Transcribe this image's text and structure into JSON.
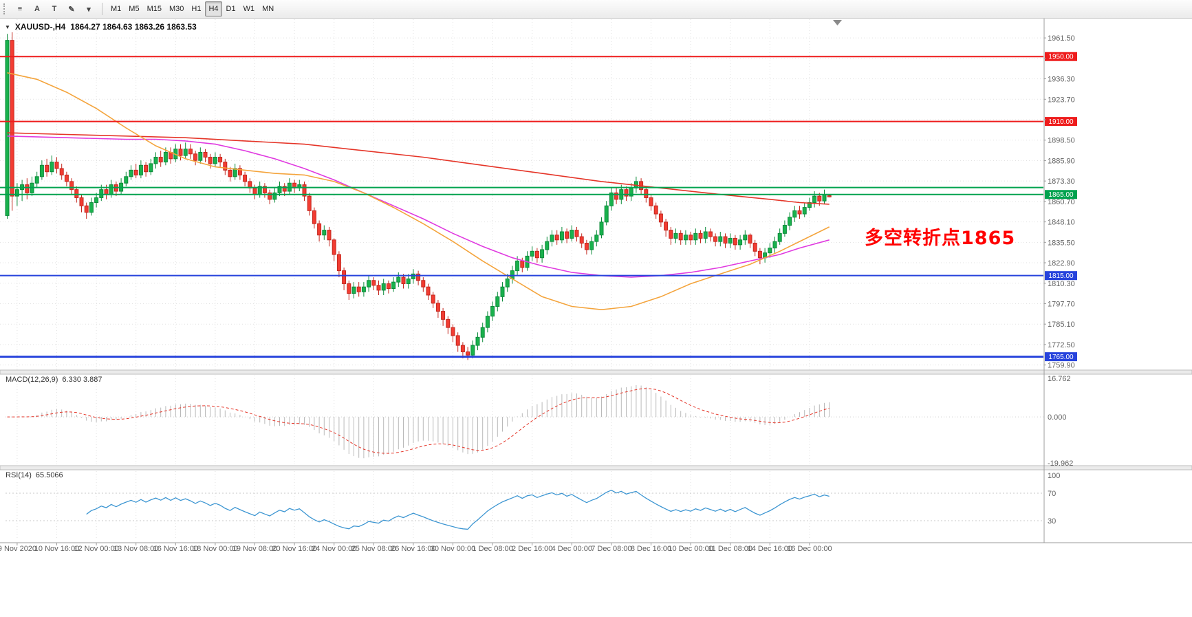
{
  "toolbar": {
    "icons": [
      {
        "name": "chart-list",
        "glyph": "≡"
      },
      {
        "name": "text-label",
        "glyph": "A"
      },
      {
        "name": "text-tool",
        "glyph": "T"
      },
      {
        "name": "draw-tools",
        "glyph": "✎"
      },
      {
        "name": "draw-tools-caret",
        "glyph": "▾"
      }
    ],
    "timeframes": [
      "M1",
      "M5",
      "M15",
      "M30",
      "H1",
      "H4",
      "D1",
      "W1",
      "MN"
    ],
    "active_timeframe": "H4"
  },
  "chart": {
    "title_symbol": "XAUUSD-,H4",
    "title_ohlc": "1864.27 1864.63 1863.26 1863.53",
    "one_click_glyph": "▼",
    "annotation": {
      "text": "多空转折点1865",
      "color": "#ff0000"
    }
  },
  "chart_data": {
    "type": "candlestick",
    "symbol": "XAUUSD-",
    "timeframe": "H4",
    "ohlc_current": {
      "open": 1864.27,
      "high": 1864.63,
      "low": 1863.26,
      "close": 1863.53
    },
    "y_axis": {
      "view_top": 1973.0,
      "view_bottom": 1757.2,
      "tick_start": 1759.9,
      "tick_step": 12.6,
      "tick_count": 17,
      "decimals": 2
    },
    "time_labels": [
      {
        "i": 2,
        "t": "9 Nov 2020"
      },
      {
        "i": 10,
        "t": "10 Nov 16:00"
      },
      {
        "i": 18,
        "t": "12 Nov 00:00"
      },
      {
        "i": 26,
        "t": "13 Nov 08:00"
      },
      {
        "i": 34,
        "t": "16 Nov 16:00"
      },
      {
        "i": 42,
        "t": "18 Nov 00:00"
      },
      {
        "i": 50,
        "t": "19 Nov 08:00"
      },
      {
        "i": 58,
        "t": "20 Nov 16:00"
      },
      {
        "i": 66,
        "t": "24 Nov 00:00"
      },
      {
        "i": 74,
        "t": "25 Nov 08:00"
      },
      {
        "i": 82,
        "t": "26 Nov 16:00"
      },
      {
        "i": 90,
        "t": "30 Nov 00:00"
      },
      {
        "i": 98,
        "t": "1 Dec 08:00"
      },
      {
        "i": 106,
        "t": "2 Dec 16:00"
      },
      {
        "i": 114,
        "t": "4 Dec 00:00"
      },
      {
        "i": 122,
        "t": "7 Dec 08:00"
      },
      {
        "i": 130,
        "t": "8 Dec 16:00"
      },
      {
        "i": 138,
        "t": "10 Dec 00:00"
      },
      {
        "i": 146,
        "t": "11 Dec 08:00"
      },
      {
        "i": 154,
        "t": "14 Dec 16:00"
      },
      {
        "i": 162,
        "t": "16 Dec 00:00"
      }
    ],
    "hlines": [
      {
        "price": 1950.0,
        "label": "1950.00",
        "color": "#ee1c1c",
        "width": 2
      },
      {
        "price": 1910.0,
        "label": "1910.00",
        "color": "#ee1c1c",
        "width": 2
      },
      {
        "price": 1869.3,
        "label": "",
        "color": "#00a24e",
        "width": 2
      },
      {
        "price": 1865.0,
        "label": "1865.00",
        "color": "#00a24e",
        "width": 2
      },
      {
        "price": 1815.0,
        "label": "1815.00",
        "color": "#2743dc",
        "width": 2
      },
      {
        "price": 1765.0,
        "label": "1765.00",
        "color": "#2743dc",
        "width": 3
      }
    ],
    "candles": [
      [
        1852,
        1964,
        1850,
        1960
      ],
      [
        1960,
        1965,
        1855,
        1864
      ],
      [
        1864,
        1872,
        1858,
        1868
      ],
      [
        1868,
        1874,
        1861,
        1871
      ],
      [
        1871,
        1875,
        1862,
        1866
      ],
      [
        1866,
        1876,
        1864,
        1872
      ],
      [
        1872,
        1879,
        1869,
        1876
      ],
      [
        1876,
        1886,
        1874,
        1883
      ],
      [
        1883,
        1887,
        1876,
        1879
      ],
      [
        1879,
        1889,
        1877,
        1885
      ],
      [
        1885,
        1888,
        1878,
        1881
      ],
      [
        1881,
        1884,
        1874,
        1877
      ],
      [
        1877,
        1879,
        1870,
        1873
      ],
      [
        1873,
        1875,
        1865,
        1868
      ],
      [
        1868,
        1870,
        1860,
        1863
      ],
      [
        1863,
        1865,
        1854,
        1858
      ],
      [
        1858,
        1860,
        1850,
        1854
      ],
      [
        1854,
        1863,
        1852,
        1860
      ],
      [
        1860,
        1866,
        1857,
        1863
      ],
      [
        1863,
        1871,
        1861,
        1868
      ],
      [
        1868,
        1871,
        1862,
        1865
      ],
      [
        1865,
        1874,
        1863,
        1871
      ],
      [
        1871,
        1873,
        1864,
        1867
      ],
      [
        1867,
        1875,
        1865,
        1872
      ],
      [
        1872,
        1879,
        1870,
        1876
      ],
      [
        1876,
        1883,
        1874,
        1880
      ],
      [
        1880,
        1884,
        1875,
        1877
      ],
      [
        1877,
        1886,
        1875,
        1883
      ],
      [
        1883,
        1885,
        1876,
        1879
      ],
      [
        1879,
        1887,
        1877,
        1884
      ],
      [
        1884,
        1891,
        1881,
        1888
      ],
      [
        1888,
        1892,
        1882,
        1885
      ],
      [
        1885,
        1894,
        1883,
        1891
      ],
      [
        1891,
        1894,
        1884,
        1887
      ],
      [
        1887,
        1896,
        1885,
        1893
      ],
      [
        1893,
        1896,
        1886,
        1889
      ],
      [
        1889,
        1897,
        1887,
        1893
      ],
      [
        1893,
        1896,
        1887,
        1890
      ],
      [
        1890,
        1892,
        1883,
        1886
      ],
      [
        1886,
        1894,
        1884,
        1891
      ],
      [
        1891,
        1893,
        1885,
        1888
      ],
      [
        1888,
        1890,
        1881,
        1884
      ],
      [
        1884,
        1891,
        1882,
        1888
      ],
      [
        1888,
        1890,
        1882,
        1885
      ],
      [
        1885,
        1887,
        1877,
        1880
      ],
      [
        1880,
        1882,
        1873,
        1876
      ],
      [
        1876,
        1884,
        1874,
        1881
      ],
      [
        1881,
        1883,
        1874,
        1877
      ],
      [
        1877,
        1879,
        1870,
        1873
      ],
      [
        1873,
        1875,
        1866,
        1869
      ],
      [
        1869,
        1871,
        1862,
        1865
      ],
      [
        1865,
        1873,
        1863,
        1870
      ],
      [
        1870,
        1872,
        1863,
        1866
      ],
      [
        1866,
        1868,
        1859,
        1862
      ],
      [
        1862,
        1869,
        1860,
        1866
      ],
      [
        1866,
        1873,
        1864,
        1870
      ],
      [
        1870,
        1872,
        1864,
        1867
      ],
      [
        1867,
        1875,
        1865,
        1872
      ],
      [
        1872,
        1874,
        1866,
        1869
      ],
      [
        1869,
        1874,
        1867,
        1871
      ],
      [
        1871,
        1873,
        1861,
        1864
      ],
      [
        1864,
        1866,
        1852,
        1855
      ],
      [
        1855,
        1857,
        1844,
        1847
      ],
      [
        1847,
        1849,
        1836,
        1840
      ],
      [
        1840,
        1846,
        1837,
        1843
      ],
      [
        1843,
        1845,
        1833,
        1837
      ],
      [
        1837,
        1838,
        1824,
        1828
      ],
      [
        1828,
        1830,
        1814,
        1818
      ],
      [
        1818,
        1820,
        1806,
        1810
      ],
      [
        1810,
        1812,
        1800,
        1804
      ],
      [
        1804,
        1811,
        1801,
        1808
      ],
      [
        1808,
        1811,
        1802,
        1805
      ],
      [
        1805,
        1811,
        1802,
        1808
      ],
      [
        1808,
        1815,
        1805,
        1812
      ],
      [
        1812,
        1814,
        1806,
        1809
      ],
      [
        1809,
        1812,
        1803,
        1806
      ],
      [
        1806,
        1813,
        1803,
        1810
      ],
      [
        1810,
        1812,
        1804,
        1807
      ],
      [
        1807,
        1814,
        1805,
        1811
      ],
      [
        1811,
        1817,
        1808,
        1814
      ],
      [
        1814,
        1816,
        1807,
        1810
      ],
      [
        1810,
        1816,
        1807,
        1813
      ],
      [
        1813,
        1819,
        1810,
        1816
      ],
      [
        1816,
        1818,
        1809,
        1812
      ],
      [
        1812,
        1814,
        1805,
        1808
      ],
      [
        1808,
        1810,
        1800,
        1803
      ],
      [
        1803,
        1805,
        1795,
        1798
      ],
      [
        1798,
        1800,
        1789,
        1793
      ],
      [
        1793,
        1795,
        1784,
        1788
      ],
      [
        1788,
        1790,
        1779,
        1783
      ],
      [
        1783,
        1785,
        1774,
        1778
      ],
      [
        1778,
        1780,
        1768,
        1772
      ],
      [
        1772,
        1774,
        1764,
        1768
      ],
      [
        1768,
        1771,
        1763,
        1766
      ],
      [
        1766,
        1775,
        1764,
        1772
      ],
      [
        1772,
        1780,
        1769,
        1777
      ],
      [
        1777,
        1786,
        1774,
        1783
      ],
      [
        1783,
        1793,
        1780,
        1790
      ],
      [
        1790,
        1799,
        1787,
        1796
      ],
      [
        1796,
        1805,
        1793,
        1802
      ],
      [
        1802,
        1811,
        1799,
        1808
      ],
      [
        1808,
        1816,
        1805,
        1813
      ],
      [
        1813,
        1821,
        1810,
        1818
      ],
      [
        1818,
        1827,
        1815,
        1824
      ],
      [
        1824,
        1826,
        1817,
        1820
      ],
      [
        1820,
        1830,
        1818,
        1827
      ],
      [
        1827,
        1833,
        1824,
        1830
      ],
      [
        1830,
        1832,
        1823,
        1826
      ],
      [
        1826,
        1834,
        1823,
        1831
      ],
      [
        1831,
        1839,
        1828,
        1836
      ],
      [
        1836,
        1843,
        1833,
        1840
      ],
      [
        1840,
        1843,
        1834,
        1837
      ],
      [
        1837,
        1845,
        1835,
        1842
      ],
      [
        1842,
        1844,
        1835,
        1838
      ],
      [
        1838,
        1846,
        1836,
        1843
      ],
      [
        1843,
        1845,
        1836,
        1839
      ],
      [
        1839,
        1841,
        1832,
        1835
      ],
      [
        1835,
        1837,
        1828,
        1831
      ],
      [
        1831,
        1839,
        1828,
        1836
      ],
      [
        1836,
        1843,
        1833,
        1840
      ],
      [
        1840,
        1851,
        1838,
        1848
      ],
      [
        1848,
        1861,
        1846,
        1858
      ],
      [
        1858,
        1869,
        1855,
        1866
      ],
      [
        1866,
        1869,
        1859,
        1862
      ],
      [
        1862,
        1871,
        1859,
        1868
      ],
      [
        1868,
        1870,
        1861,
        1864
      ],
      [
        1864,
        1872,
        1861,
        1869
      ],
      [
        1869,
        1876,
        1866,
        1873
      ],
      [
        1873,
        1875,
        1865,
        1868
      ],
      [
        1868,
        1870,
        1860,
        1863
      ],
      [
        1863,
        1865,
        1855,
        1858
      ],
      [
        1858,
        1860,
        1850,
        1853
      ],
      [
        1853,
        1855,
        1845,
        1848
      ],
      [
        1848,
        1850,
        1839,
        1843
      ],
      [
        1843,
        1845,
        1834,
        1838
      ],
      [
        1838,
        1844,
        1835,
        1841
      ],
      [
        1841,
        1843,
        1834,
        1837
      ],
      [
        1837,
        1843,
        1834,
        1840
      ],
      [
        1840,
        1842,
        1834,
        1837
      ],
      [
        1837,
        1844,
        1834,
        1841
      ],
      [
        1841,
        1843,
        1835,
        1838
      ],
      [
        1838,
        1845,
        1835,
        1842
      ],
      [
        1842,
        1844,
        1836,
        1839
      ],
      [
        1839,
        1841,
        1833,
        1836
      ],
      [
        1836,
        1842,
        1833,
        1839
      ],
      [
        1839,
        1841,
        1832,
        1835
      ],
      [
        1835,
        1841,
        1832,
        1838
      ],
      [
        1838,
        1840,
        1831,
        1834
      ],
      [
        1834,
        1840,
        1831,
        1837
      ],
      [
        1837,
        1843,
        1834,
        1840
      ],
      [
        1840,
        1841,
        1832,
        1835
      ],
      [
        1835,
        1837,
        1827,
        1830
      ],
      [
        1830,
        1832,
        1822,
        1826
      ],
      [
        1826,
        1832,
        1823,
        1829
      ],
      [
        1829,
        1835,
        1826,
        1832
      ],
      [
        1832,
        1839,
        1829,
        1836
      ],
      [
        1836,
        1844,
        1834,
        1841
      ],
      [
        1841,
        1849,
        1839,
        1846
      ],
      [
        1846,
        1854,
        1843,
        1851
      ],
      [
        1851,
        1858,
        1848,
        1855
      ],
      [
        1855,
        1858,
        1850,
        1853
      ],
      [
        1853,
        1860,
        1851,
        1857
      ],
      [
        1857,
        1863,
        1855,
        1860
      ],
      [
        1860,
        1867,
        1857,
        1864
      ],
      [
        1864,
        1866,
        1858,
        1861
      ],
      [
        1861,
        1868,
        1859,
        1865
      ],
      [
        1864.27,
        1864.63,
        1863.26,
        1863.53
      ]
    ],
    "ma_fast": [
      [
        0,
        1940
      ],
      [
        6,
        1936
      ],
      [
        12,
        1928
      ],
      [
        18,
        1918
      ],
      [
        24,
        1906
      ],
      [
        30,
        1895
      ],
      [
        36,
        1887
      ],
      [
        42,
        1882
      ],
      [
        48,
        1880
      ],
      [
        54,
        1878
      ],
      [
        60,
        1877
      ],
      [
        66,
        1873
      ],
      [
        72,
        1866
      ],
      [
        78,
        1857
      ],
      [
        84,
        1847
      ],
      [
        90,
        1836
      ],
      [
        96,
        1824
      ],
      [
        102,
        1813
      ],
      [
        108,
        1802
      ],
      [
        114,
        1796
      ],
      [
        120,
        1794
      ],
      [
        126,
        1796
      ],
      [
        132,
        1802
      ],
      [
        138,
        1810
      ],
      [
        144,
        1816
      ],
      [
        150,
        1822
      ],
      [
        156,
        1830
      ],
      [
        160,
        1836
      ],
      [
        166,
        1845
      ]
    ],
    "ma_mid": [
      [
        0,
        1901
      ],
      [
        12,
        1900
      ],
      [
        24,
        1899
      ],
      [
        30,
        1899
      ],
      [
        36,
        1898
      ],
      [
        42,
        1896
      ],
      [
        48,
        1892
      ],
      [
        54,
        1887
      ],
      [
        60,
        1881
      ],
      [
        66,
        1874
      ],
      [
        72,
        1866
      ],
      [
        78,
        1858
      ],
      [
        84,
        1850
      ],
      [
        90,
        1841
      ],
      [
        96,
        1833
      ],
      [
        102,
        1826
      ],
      [
        108,
        1821
      ],
      [
        114,
        1817
      ],
      [
        120,
        1815
      ],
      [
        126,
        1814
      ],
      [
        132,
        1815
      ],
      [
        138,
        1817
      ],
      [
        144,
        1820
      ],
      [
        150,
        1824
      ],
      [
        156,
        1828
      ],
      [
        160,
        1832
      ],
      [
        166,
        1837
      ]
    ],
    "ma_slow": [
      [
        0,
        1903
      ],
      [
        12,
        1902
      ],
      [
        24,
        1901
      ],
      [
        36,
        1900
      ],
      [
        48,
        1898
      ],
      [
        60,
        1896
      ],
      [
        72,
        1892
      ],
      [
        84,
        1888
      ],
      [
        96,
        1883
      ],
      [
        108,
        1878
      ],
      [
        120,
        1873
      ],
      [
        132,
        1869
      ],
      [
        144,
        1865
      ],
      [
        154,
        1862
      ],
      [
        160,
        1860
      ],
      [
        166,
        1859
      ]
    ],
    "macd": {
      "params": [
        12,
        26,
        9
      ],
      "label": "MACD(12,26,9)",
      "values_text": "6.330 3.887",
      "axis_max": 16.762,
      "axis_min": -19.962,
      "axis_labels": [
        "16.762",
        "0.000",
        "-19.962"
      ]
    },
    "rsi": {
      "period": 14,
      "label": "RSI(14)",
      "value_text": "65.5066",
      "levels": [
        70,
        30
      ],
      "axis_top_label": "100",
      "level_labels": [
        "70",
        "30"
      ]
    },
    "colors": {
      "up": "#19b24d",
      "up_stroke": "#0c8a3a",
      "down": "#f23c32",
      "down_stroke": "#c3271e",
      "ma_fast": "#f4a43c",
      "ma_mid": "#e03ae0",
      "ma_slow": "#e53528",
      "grid": "#e1e1e1",
      "axis_text": "#5f5f5f",
      "macd_bar": "#b9b9b9",
      "macd_signal": "#e53528",
      "rsi_line": "#3d96d2"
    }
  }
}
